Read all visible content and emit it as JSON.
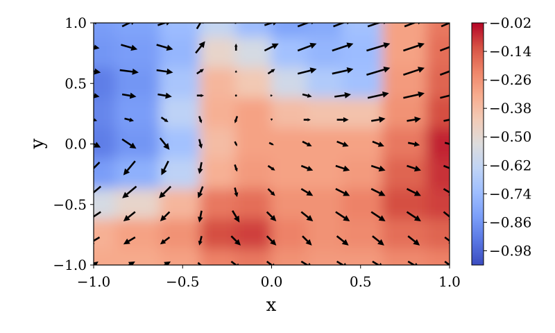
{
  "chart_data": {
    "type": "heatmap",
    "subtype": "contour-with-quiver",
    "title": "",
    "xlabel": "x",
    "ylabel": "y",
    "xlim": [
      -1.0,
      1.0
    ],
    "ylim": [
      -1.0,
      1.0
    ],
    "xticks": [
      "−1.0",
      "−0.5",
      "0.0",
      "0.5",
      "1.0"
    ],
    "yticks": [
      "−1.0",
      "−0.5",
      "0.0",
      "0.5",
      "1.0"
    ],
    "grid": false,
    "colormap": "coolwarm",
    "colorbar": {
      "vmin": -1.04,
      "vmax": -0.02,
      "ticks": [
        -0.98,
        -0.86,
        -0.74,
        -0.62,
        -0.5,
        -0.38,
        -0.26,
        -0.14,
        -0.02
      ],
      "tick_labels": [
        "−0.98",
        "−0.86",
        "−0.74",
        "−0.62",
        "−0.50",
        "−0.38",
        "−0.26",
        "−0.14",
        "−0.02"
      ],
      "colors": [
        "#3b4cc0",
        "#5977e3",
        "#7b9ff9",
        "#9ebeff",
        "#c0d4f5",
        "#dddcdc",
        "#f2cbb7",
        "#f7ac8e",
        "#ee8468",
        "#d65244",
        "#b40426"
      ]
    },
    "field": {
      "x": [
        -1.0,
        -0.75,
        -0.5,
        -0.3,
        -0.1,
        0.1,
        0.3,
        0.5,
        0.75,
        1.0
      ],
      "y": [
        1.0,
        0.75,
        0.5,
        0.25,
        0.0,
        -0.25,
        -0.5,
        -0.75,
        -1.0
      ],
      "values": [
        [
          -0.84,
          -0.82,
          -0.74,
          -0.62,
          -0.74,
          -0.82,
          -0.8,
          -0.72,
          -0.3,
          -0.2
        ],
        [
          -0.86,
          -0.84,
          -0.76,
          -0.48,
          -0.56,
          -0.72,
          -0.76,
          -0.74,
          -0.3,
          -0.18
        ],
        [
          -0.92,
          -0.86,
          -0.7,
          -0.36,
          -0.42,
          -0.58,
          -0.68,
          -0.72,
          -0.28,
          -0.16
        ],
        [
          -0.9,
          -0.84,
          -0.64,
          -0.34,
          -0.3,
          -0.38,
          -0.4,
          -0.4,
          -0.26,
          -0.12
        ],
        [
          -0.92,
          -0.86,
          -0.72,
          -0.38,
          -0.3,
          -0.3,
          -0.3,
          -0.3,
          -0.2,
          -0.06
        ],
        [
          -0.84,
          -0.78,
          -0.64,
          -0.34,
          -0.28,
          -0.3,
          -0.3,
          -0.28,
          -0.16,
          -0.08
        ],
        [
          -0.56,
          -0.48,
          -0.36,
          -0.2,
          -0.18,
          -0.26,
          -0.26,
          -0.22,
          -0.12,
          -0.1
        ],
        [
          -0.34,
          -0.3,
          -0.26,
          -0.12,
          -0.1,
          -0.22,
          -0.26,
          -0.24,
          -0.18,
          -0.16
        ],
        [
          -0.32,
          -0.32,
          -0.3,
          -0.22,
          -0.2,
          -0.26,
          -0.28,
          -0.28,
          -0.24,
          -0.22
        ]
      ]
    },
    "quiver": {
      "x": [
        -1.0,
        -0.8,
        -0.6,
        -0.4,
        -0.2,
        0.0,
        0.2,
        0.4,
        0.6,
        0.8,
        1.0
      ],
      "y": [
        1.0,
        0.8,
        0.6,
        0.4,
        0.2,
        0.0,
        -0.2,
        -0.4,
        -0.6,
        -0.8,
        -1.0
      ],
      "u": [
        [
          0.4,
          0.6,
          0.6,
          0.3,
          0.1,
          0.6,
          0.8,
          0.8,
          0.9,
          0.8,
          0.7
        ],
        [
          0.5,
          0.7,
          0.7,
          0.4,
          0.0,
          0.6,
          0.8,
          0.9,
          1.0,
          0.9,
          0.8
        ],
        [
          0.6,
          0.8,
          0.7,
          0.3,
          0.0,
          0.3,
          0.8,
          0.9,
          1.0,
          0.9,
          0.8
        ],
        [
          0.5,
          0.6,
          0.6,
          0.3,
          0.0,
          0.1,
          0.4,
          0.7,
          0.9,
          0.9,
          0.8
        ],
        [
          0.3,
          0.4,
          0.3,
          0.1,
          -0.1,
          0.0,
          0.3,
          0.5,
          0.6,
          0.6,
          0.5
        ],
        [
          0.6,
          0.6,
          0.4,
          0.1,
          0.1,
          0.2,
          0.4,
          0.5,
          0.5,
          0.5,
          0.4
        ],
        [
          -0.5,
          -0.5,
          -0.3,
          -0.1,
          0.1,
          0.3,
          0.5,
          0.6,
          0.6,
          0.6,
          0.5
        ],
        [
          -0.6,
          -0.6,
          -0.5,
          -0.2,
          0.1,
          0.3,
          0.5,
          0.6,
          0.6,
          0.6,
          0.5
        ],
        [
          -0.6,
          -0.5,
          -0.4,
          -0.1,
          0.3,
          0.4,
          0.5,
          0.6,
          0.6,
          0.6,
          0.5
        ],
        [
          -0.5,
          -0.5,
          -0.4,
          -0.1,
          0.4,
          0.4,
          0.4,
          0.5,
          0.5,
          0.5,
          0.4
        ],
        [
          0.4,
          0.5,
          0.5,
          0.2,
          0.4,
          0.4,
          0.5,
          0.5,
          0.5,
          0.5,
          0.4
        ]
      ],
      "v": [
        [
          0.3,
          0.3,
          0.2,
          0.5,
          0.0,
          0.2,
          0.3,
          0.3,
          0.3,
          0.3,
          0.3
        ],
        [
          -0.1,
          -0.2,
          -0.2,
          0.5,
          0.3,
          0.3,
          0.3,
          0.3,
          0.3,
          0.3,
          0.3
        ],
        [
          -0.1,
          -0.1,
          -0.1,
          0.2,
          0.1,
          0.2,
          0.2,
          0.2,
          0.3,
          0.3,
          0.3
        ],
        [
          -0.1,
          -0.1,
          -0.1,
          0.0,
          0.0,
          0.0,
          -0.1,
          0.1,
          0.2,
          0.2,
          0.2
        ],
        [
          -0.1,
          -0.1,
          -0.2,
          -0.3,
          -0.3,
          -0.1,
          0.0,
          0.0,
          0.1,
          0.1,
          0.1
        ],
        [
          -0.3,
          -0.4,
          -0.5,
          -0.4,
          -0.2,
          -0.1,
          -0.2,
          -0.2,
          -0.2,
          -0.1,
          -0.1
        ],
        [
          -0.5,
          -0.6,
          -0.6,
          -0.5,
          -0.3,
          -0.2,
          -0.2,
          -0.2,
          -0.2,
          -0.2,
          -0.2
        ],
        [
          -0.5,
          -0.5,
          -0.5,
          -0.5,
          -0.4,
          -0.3,
          -0.3,
          -0.3,
          -0.3,
          -0.3,
          -0.3
        ],
        [
          -0.4,
          -0.4,
          -0.4,
          -0.5,
          -0.5,
          -0.4,
          -0.4,
          -0.4,
          -0.4,
          -0.4,
          -0.4
        ],
        [
          -0.3,
          -0.3,
          -0.3,
          -0.4,
          -0.4,
          -0.4,
          -0.4,
          -0.4,
          -0.4,
          -0.4,
          -0.3
        ],
        [
          0.3,
          0.3,
          0.3,
          -0.2,
          -0.3,
          -0.3,
          -0.3,
          -0.3,
          -0.3,
          -0.3,
          -0.3
        ]
      ]
    }
  }
}
